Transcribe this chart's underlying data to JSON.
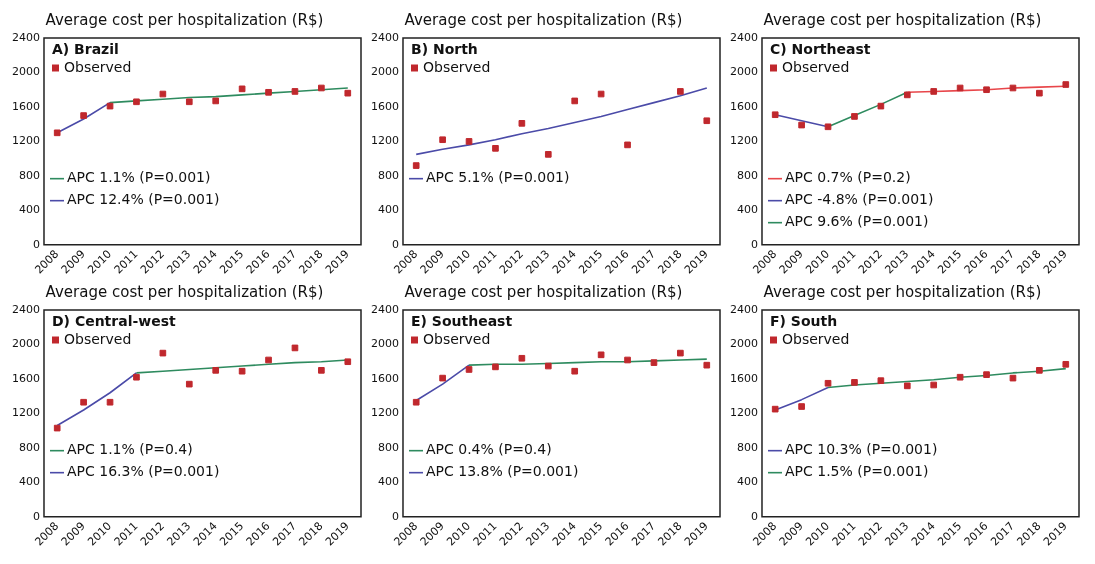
{
  "chart_data": [
    {
      "type": "line",
      "title": "Average cost per hospitalization (R$)",
      "subtitle": "A) Brazil",
      "categories": [
        "2008",
        "2009",
        "2010",
        "2011",
        "2012",
        "2013",
        "2014",
        "2015",
        "2016",
        "2017",
        "2018",
        "2019"
      ],
      "ylim": [
        0,
        2400
      ],
      "yticks": [
        0,
        400,
        800,
        1200,
        1600,
        2000,
        2400
      ],
      "grid": false,
      "legend": "left",
      "series": [
        {
          "name": "Observed",
          "type": "scatter",
          "marker": "square",
          "color": "#c0282d",
          "values": [
            1300,
            1500,
            1610,
            1660,
            1750,
            1660,
            1670,
            1810,
            1770,
            1780,
            1820,
            1760
          ]
        },
        {
          "name": "APC 1.1% (P=0.001)",
          "type": "line",
          "marker": "none",
          "color": "#2e8b5f",
          "values": [
            null,
            null,
            1650,
            1670,
            1690,
            1710,
            1720,
            1740,
            1760,
            1780,
            1800,
            1820
          ]
        },
        {
          "name": "APC 12.4% (P=0.001)",
          "type": "line",
          "marker": "none",
          "color": "#4b4ba8",
          "values": [
            1300,
            1460,
            1650,
            null,
            null,
            null,
            null,
            null,
            null,
            null,
            null,
            null
          ]
        }
      ]
    },
    {
      "type": "line",
      "title": "Average cost per hospitalization (R$)",
      "subtitle": "B) North",
      "categories": [
        "2008",
        "2009",
        "2010",
        "2011",
        "2012",
        "2013",
        "2014",
        "2015",
        "2016",
        "2017",
        "2018",
        "2019"
      ],
      "ylim": [
        0,
        2400
      ],
      "yticks": [
        0,
        400,
        800,
        1200,
        1600,
        2000,
        2400
      ],
      "grid": false,
      "legend": "left",
      "series": [
        {
          "name": "Observed",
          "type": "scatter",
          "marker": "square",
          "color": "#c0282d",
          "values": [
            920,
            1220,
            1200,
            1120,
            1410,
            1050,
            1670,
            1750,
            1160,
            null,
            1780,
            1440
          ]
        },
        {
          "name": "APC 5.1% (P=0.001)",
          "type": "line",
          "marker": "none",
          "color": "#4b4ba8",
          "values": [
            1050,
            1110,
            1160,
            1220,
            1290,
            1350,
            1420,
            1490,
            1570,
            1650,
            1730,
            1820
          ]
        }
      ]
    },
    {
      "type": "line",
      "title": "Average cost per hospitalization (R$)",
      "subtitle": "C) Northeast",
      "categories": [
        "2008",
        "2009",
        "2010",
        "2011",
        "2012",
        "2013",
        "2014",
        "2015",
        "2016",
        "2017",
        "2018",
        "2019"
      ],
      "ylim": [
        0,
        2400
      ],
      "yticks": [
        0,
        400,
        800,
        1200,
        1600,
        2000,
        2400
      ],
      "grid": false,
      "legend": "left",
      "series": [
        {
          "name": "Observed",
          "type": "scatter",
          "marker": "square",
          "color": "#c0282d",
          "values": [
            1510,
            1390,
            1370,
            1490,
            1610,
            1740,
            1780,
            1820,
            1800,
            1820,
            1760,
            1860
          ]
        },
        {
          "name": "APC 0.7% (P=0.2)",
          "type": "line",
          "marker": "none",
          "color": "#e8464a",
          "values": [
            null,
            null,
            null,
            null,
            null,
            1770,
            1780,
            1790,
            1800,
            1820,
            1830,
            1840
          ]
        },
        {
          "name": "APC -4.8% (P=0.001)",
          "type": "line",
          "marker": "none",
          "color": "#4b4ba8",
          "values": [
            1510,
            1440,
            1370,
            null,
            null,
            null,
            null,
            null,
            null,
            null,
            null,
            null
          ]
        },
        {
          "name": "APC 9.6% (P=0.001)",
          "type": "line",
          "marker": "none",
          "color": "#2e8b5f",
          "values": [
            null,
            null,
            1370,
            1500,
            1630,
            1770,
            null,
            null,
            null,
            null,
            null,
            null
          ]
        }
      ]
    },
    {
      "type": "line",
      "title": "Average cost per hospitalization (R$)",
      "subtitle": "D) Central-west",
      "categories": [
        "2008",
        "2009",
        "2010",
        "2011",
        "2012",
        "2013",
        "2014",
        "2015",
        "2016",
        "2017",
        "2018",
        "2019"
      ],
      "ylim": [
        0,
        2400
      ],
      "yticks": [
        0,
        400,
        800,
        1200,
        1600,
        2000,
        2400
      ],
      "grid": false,
      "legend": "left",
      "series": [
        {
          "name": "Observed",
          "type": "scatter",
          "marker": "square",
          "color": "#c0282d",
          "values": [
            1030,
            1330,
            1330,
            1620,
            1900,
            1540,
            1700,
            1690,
            1820,
            1960,
            1700,
            1800
          ]
        },
        {
          "name": "APC 1.1% (P=0.4)",
          "type": "line",
          "marker": "none",
          "color": "#2e8b5f",
          "values": [
            null,
            null,
            null,
            1670,
            1690,
            1710,
            1730,
            1750,
            1770,
            1790,
            1800,
            1820
          ]
        },
        {
          "name": "APC 16.3% (P=0.001)",
          "type": "line",
          "marker": "none",
          "color": "#4b4ba8",
          "values": [
            1060,
            1240,
            1440,
            1670,
            null,
            null,
            null,
            null,
            null,
            null,
            null,
            null
          ]
        }
      ]
    },
    {
      "type": "line",
      "title": "Average cost per hospitalization (R$)",
      "subtitle": "E) Southeast",
      "categories": [
        "2008",
        "2009",
        "2010",
        "2011",
        "2012",
        "2013",
        "2014",
        "2015",
        "2016",
        "2017",
        "2018",
        "2019"
      ],
      "ylim": [
        0,
        2400
      ],
      "yticks": [
        0,
        400,
        800,
        1200,
        1600,
        2000,
        2400
      ],
      "grid": false,
      "legend": "left",
      "series": [
        {
          "name": "Observed",
          "type": "scatter",
          "marker": "square",
          "color": "#c0282d",
          "values": [
            1330,
            1610,
            1710,
            1740,
            1840,
            1750,
            1690,
            1880,
            1820,
            1790,
            1900,
            1760
          ]
        },
        {
          "name": "APC 0.4% (P=0.4)",
          "type": "line",
          "marker": "none",
          "color": "#2e8b5f",
          "values": [
            null,
            null,
            1760,
            1770,
            1770,
            1780,
            1790,
            1800,
            1800,
            1810,
            1820,
            1830
          ]
        },
        {
          "name": "APC 13.8% (P=0.001)",
          "type": "line",
          "marker": "none",
          "color": "#4b4ba8",
          "values": [
            1350,
            1540,
            1760,
            null,
            null,
            null,
            null,
            null,
            null,
            null,
            null,
            null
          ]
        }
      ]
    },
    {
      "type": "line",
      "title": "Average cost per hospitalization (R$)",
      "subtitle": "F) South",
      "categories": [
        "2008",
        "2009",
        "2010",
        "2011",
        "2012",
        "2013",
        "2014",
        "2015",
        "2016",
        "2017",
        "2018",
        "2019"
      ],
      "ylim": [
        0,
        2400
      ],
      "yticks": [
        0,
        400,
        800,
        1200,
        1600,
        2000,
        2400
      ],
      "grid": false,
      "legend": "left",
      "series": [
        {
          "name": "Observed",
          "type": "scatter",
          "marker": "square",
          "color": "#c0282d",
          "values": [
            1250,
            1280,
            1550,
            1560,
            1580,
            1520,
            1530,
            1620,
            1650,
            1610,
            1700,
            1770
          ]
        },
        {
          "name": "APC 10.3% (P=0.001)",
          "type": "line",
          "marker": "none",
          "color": "#4b4ba8",
          "values": [
            1240,
            1360,
            1500,
            null,
            null,
            null,
            null,
            null,
            null,
            null,
            null,
            null
          ]
        },
        {
          "name": "APC 1.5% (P=0.001)",
          "type": "line",
          "marker": "none",
          "color": "#2e8b5f",
          "values": [
            null,
            null,
            1500,
            1530,
            1550,
            1570,
            1590,
            1620,
            1640,
            1670,
            1690,
            1720
          ]
        }
      ]
    }
  ]
}
